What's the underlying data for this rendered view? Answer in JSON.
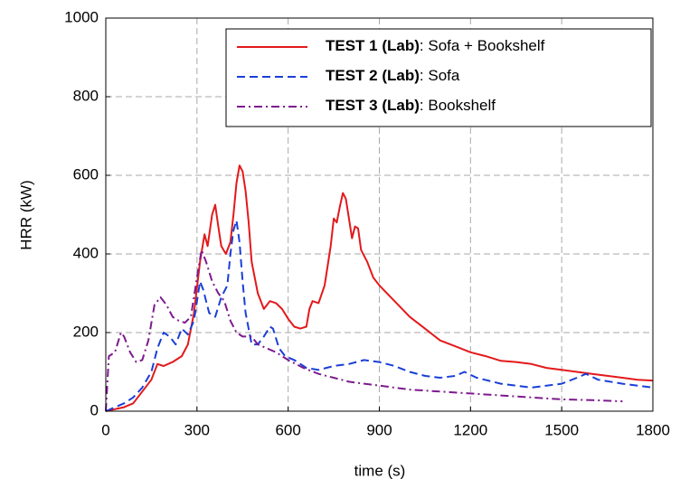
{
  "chart_data": {
    "type": "line",
    "x_label": "time (s)",
    "y_label": "HRR (kW)",
    "xlim": [
      0,
      1800
    ],
    "xticks": [
      0,
      300,
      600,
      900,
      1200,
      1500,
      1800
    ],
    "ylim": [
      0,
      1000
    ],
    "yticks": [
      0,
      200,
      400,
      600,
      800,
      1000
    ],
    "grid": true,
    "legend": "upper right",
    "series": [
      {
        "name": "TEST 1 (Lab): Sofa + Bookshelf",
        "color": "#e3191b",
        "linestyle": "solid",
        "x": [
          0,
          30,
          60,
          90,
          120,
          150,
          170,
          190,
          220,
          250,
          270,
          290,
          310,
          325,
          335,
          350,
          360,
          370,
          380,
          395,
          410,
          420,
          430,
          440,
          450,
          460,
          470,
          480,
          500,
          520,
          540,
          560,
          580,
          600,
          620,
          640,
          660,
          670,
          680,
          700,
          720,
          740,
          750,
          760,
          770,
          780,
          790,
          800,
          810,
          820,
          830,
          840,
          860,
          880,
          900,
          950,
          1000,
          1050,
          1100,
          1150,
          1200,
          1250,
          1300,
          1350,
          1400,
          1450,
          1500,
          1550,
          1600,
          1650,
          1700,
          1750,
          1800
        ],
        "values": [
          0,
          5,
          10,
          20,
          50,
          80,
          120,
          115,
          125,
          140,
          170,
          250,
          380,
          450,
          420,
          500,
          525,
          470,
          420,
          400,
          430,
          500,
          580,
          625,
          610,
          560,
          480,
          380,
          300,
          260,
          280,
          275,
          260,
          235,
          215,
          210,
          215,
          260,
          280,
          275,
          320,
          420,
          490,
          480,
          520,
          555,
          540,
          490,
          440,
          470,
          465,
          410,
          380,
          340,
          320,
          280,
          240,
          210,
          180,
          165,
          150,
          140,
          128,
          125,
          120,
          110,
          105,
          100,
          95,
          90,
          85,
          80,
          78
        ]
      },
      {
        "name": "TEST 2 (Lab): Sofa",
        "color": "#1a3fd8",
        "linestyle": "dashed",
        "x": [
          0,
          30,
          60,
          90,
          120,
          150,
          170,
          190,
          210,
          230,
          250,
          270,
          290,
          310,
          320,
          340,
          360,
          380,
          400,
          410,
          420,
          430,
          440,
          450,
          460,
          480,
          500,
          520,
          540,
          550,
          570,
          590,
          620,
          660,
          700,
          750,
          800,
          850,
          900,
          950,
          1000,
          1050,
          1100,
          1150,
          1180,
          1220,
          1300,
          1350,
          1400,
          1450,
          1500,
          1550,
          1580,
          1620,
          1700,
          1750,
          1800
        ],
        "values": [
          0,
          10,
          20,
          35,
          60,
          100,
          160,
          200,
          190,
          170,
          210,
          195,
          230,
          330,
          310,
          250,
          240,
          290,
          320,
          400,
          460,
          485,
          430,
          330,
          250,
          170,
          170,
          190,
          215,
          210,
          160,
          140,
          130,
          110,
          105,
          115,
          120,
          130,
          125,
          115,
          100,
          90,
          85,
          90,
          100,
          85,
          70,
          65,
          60,
          65,
          70,
          85,
          95,
          80,
          70,
          65,
          60
        ]
      },
      {
        "name": "TEST 3 (Lab): Bookshelf",
        "color": "#7d1a8e",
        "linestyle": "dashdot",
        "x": [
          0,
          10,
          30,
          50,
          60,
          80,
          100,
          120,
          140,
          160,
          180,
          200,
          220,
          240,
          260,
          280,
          300,
          315,
          330,
          350,
          370,
          390,
          410,
          430,
          450,
          480,
          500,
          530,
          560,
          600,
          650,
          700,
          750,
          800,
          900,
          1000,
          1100,
          1200,
          1300,
          1400,
          1500,
          1600,
          1700
        ],
        "values": [
          0,
          140,
          150,
          200,
          190,
          150,
          125,
          130,
          180,
          270,
          290,
          270,
          240,
          230,
          225,
          240,
          340,
          410,
          380,
          330,
          300,
          280,
          230,
          200,
          190,
          190,
          170,
          160,
          150,
          130,
          110,
          95,
          85,
          75,
          65,
          55,
          50,
          45,
          40,
          35,
          30,
          28,
          25
        ]
      }
    ]
  }
}
